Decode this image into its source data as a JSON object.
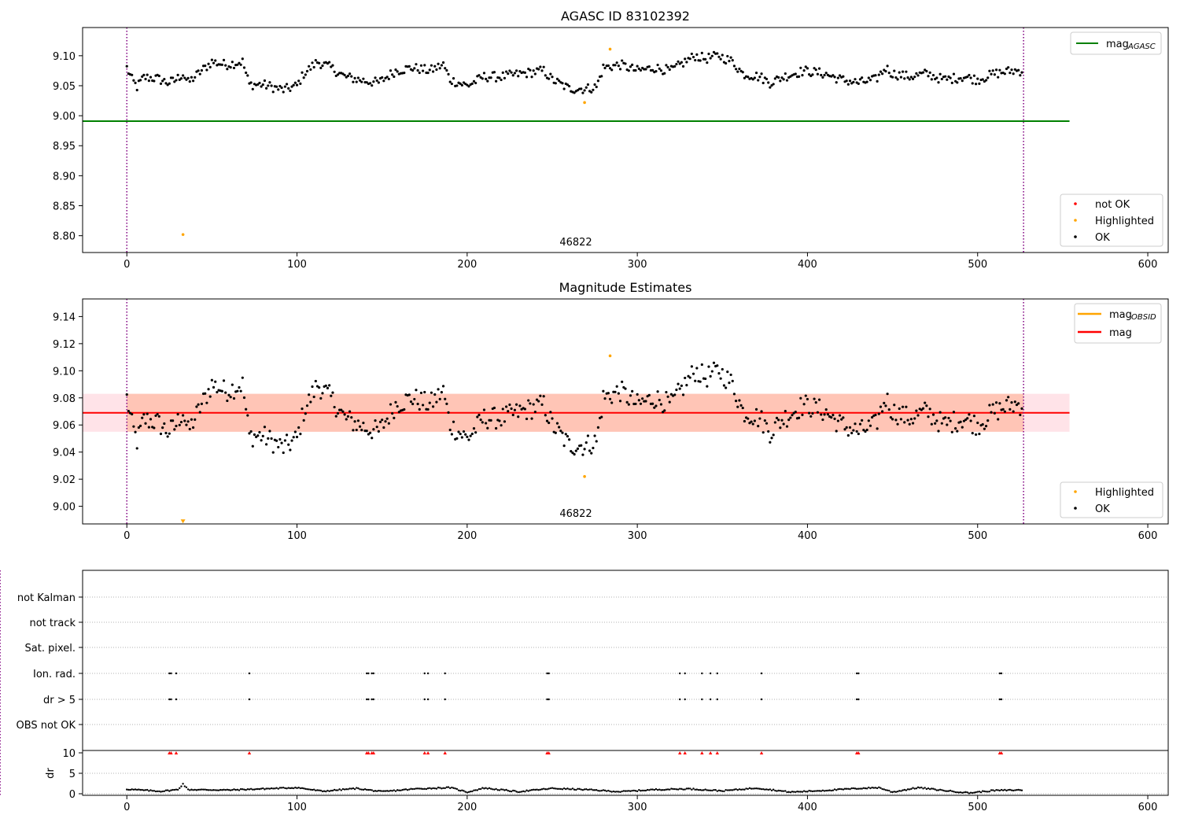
{
  "colors": {
    "ok": "#000000",
    "highlighted": "#ffa500",
    "not_ok": "#ff0000",
    "mag_agasc_line": "#008000",
    "mag_obsid_line": "#ffa500",
    "mag_line": "#ff0000",
    "band_orange": "#ffa07a",
    "band_pink": "#ffc0cb",
    "vline": "#800080"
  },
  "chart_data": [
    {
      "type": "scatter",
      "title": "AGASC ID 83102392",
      "xlabel": "",
      "ylabel": "",
      "xlim": [
        -26,
        612
      ],
      "ylim": [
        8.772,
        9.147
      ],
      "x_ticks": [
        "0",
        "100",
        "200",
        "300",
        "400",
        "500",
        "600"
      ],
      "y_ticks": [
        "8.80",
        "8.85",
        "8.90",
        "8.95",
        "9.00",
        "9.05",
        "9.10"
      ],
      "obsid_label": "46822",
      "obs_start": 0,
      "obs_end": 527,
      "reference_line": {
        "name": "mag_{AGASC}",
        "value": 8.991,
        "x_range": [
          -26,
          554
        ]
      },
      "legend_lines": [
        {
          "label": "mag",
          "sub": "AGASC"
        }
      ],
      "legend_points": [
        {
          "label": "not OK",
          "key": "not_ok"
        },
        {
          "label": "Highlighted",
          "key": "highlighted"
        },
        {
          "label": "OK",
          "key": "ok"
        }
      ],
      "highlighted_points": [
        {
          "x": 33,
          "y": 8.802
        },
        {
          "x": 269,
          "y": 9.022
        },
        {
          "x": 284,
          "y": 9.111
        }
      ],
      "ok_series": {
        "x_start": 0,
        "x_step": 1,
        "count": 527,
        "segments": [
          [
            0,
            9.08
          ],
          [
            3,
            9.06
          ],
          [
            6,
            9.048
          ],
          [
            10,
            9.064
          ],
          [
            18,
            9.062
          ],
          [
            24,
            9.055
          ],
          [
            28,
            9.058
          ],
          [
            33,
            9.07
          ],
          [
            36,
            9.055
          ],
          [
            42,
            9.07
          ],
          [
            50,
            9.09
          ],
          [
            58,
            9.085
          ],
          [
            68,
            9.09
          ],
          [
            72,
            9.052
          ],
          [
            80,
            9.052
          ],
          [
            92,
            9.043
          ],
          [
            100,
            9.05
          ],
          [
            104,
            9.07
          ],
          [
            112,
            9.09
          ],
          [
            120,
            9.08
          ],
          [
            128,
            9.065
          ],
          [
            140,
            9.058
          ],
          [
            148,
            9.055
          ],
          [
            158,
            9.075
          ],
          [
            168,
            9.08
          ],
          [
            178,
            9.075
          ],
          [
            186,
            9.085
          ],
          [
            190,
            9.06
          ],
          [
            200,
            9.05
          ],
          [
            210,
            9.065
          ],
          [
            220,
            9.065
          ],
          [
            232,
            9.07
          ],
          [
            245,
            9.075
          ],
          [
            250,
            9.06
          ],
          [
            260,
            9.045
          ],
          [
            270,
            9.045
          ],
          [
            276,
            9.048
          ],
          [
            280,
            9.08
          ],
          [
            290,
            9.085
          ],
          [
            300,
            9.075
          ],
          [
            310,
            9.08
          ],
          [
            320,
            9.075
          ],
          [
            328,
            9.09
          ],
          [
            334,
            9.1
          ],
          [
            340,
            9.095
          ],
          [
            348,
            9.1
          ],
          [
            356,
            9.09
          ],
          [
            362,
            9.07
          ],
          [
            372,
            9.065
          ],
          [
            378,
            9.055
          ],
          [
            386,
            9.065
          ],
          [
            398,
            9.075
          ],
          [
            410,
            9.07
          ],
          [
            420,
            9.06
          ],
          [
            430,
            9.055
          ],
          [
            440,
            9.06
          ],
          [
            446,
            9.08
          ],
          [
            450,
            9.07
          ],
          [
            460,
            9.065
          ],
          [
            470,
            9.07
          ],
          [
            480,
            9.06
          ],
          [
            492,
            9.065
          ],
          [
            500,
            9.06
          ],
          [
            510,
            9.07
          ],
          [
            520,
            9.075
          ],
          [
            526,
            9.075
          ]
        ]
      }
    },
    {
      "type": "scatter",
      "title": "Magnitude Estimates",
      "xlabel": "",
      "ylabel": "",
      "xlim": [
        -26,
        612
      ],
      "ylim": [
        8.987,
        9.153
      ],
      "x_ticks": [
        "0",
        "100",
        "200",
        "300",
        "400",
        "500",
        "600"
      ],
      "y_ticks": [
        "9.00",
        "9.02",
        "9.04",
        "9.06",
        "9.08",
        "9.10",
        "9.12",
        "9.14"
      ],
      "obsid_label": "46822",
      "obs_start": 0,
      "obs_end": 527,
      "mag_line": {
        "name": "mag",
        "value": 9.069,
        "x_range": [
          -26,
          554
        ]
      },
      "band": {
        "y_range": [
          9.055,
          9.083
        ],
        "x_range": [
          -26,
          554
        ],
        "orange_x_range": [
          0,
          527
        ]
      },
      "legend_lines": [
        {
          "label": "mag",
          "sub": "OBSID",
          "key": "mag_obsid_line"
        },
        {
          "label": "mag",
          "sub": "",
          "key": "mag_line"
        }
      ],
      "legend_points": [
        {
          "label": "Highlighted",
          "key": "highlighted"
        },
        {
          "label": "OK",
          "key": "ok"
        }
      ],
      "highlighted_points": [
        {
          "x": 269,
          "y": 9.022
        },
        {
          "x": 284,
          "y": 9.111
        }
      ],
      "highlighted_markers": [
        {
          "x": 33,
          "y": 8.988,
          "marker": "triangle-down"
        }
      ]
    },
    {
      "type": "scatter",
      "title": "",
      "xlim": [
        -26,
        612
      ],
      "x_ticks": [
        "0",
        "100",
        "200",
        "300",
        "400",
        "500",
        "600"
      ],
      "flag_rows": [
        "OBS not OK",
        "dr > 5",
        "Ion. rad.",
        "Sat. pixel.",
        "not track",
        "not Kalman"
      ],
      "flag_events": [
        25,
        26,
        29,
        72,
        141,
        142,
        144,
        145,
        175,
        177,
        187,
        247,
        248,
        325,
        328,
        338,
        343,
        347,
        373,
        429,
        430,
        513,
        514
      ],
      "dr": {
        "ylabel": "dr",
        "ylim": [
          0,
          10
        ],
        "y_ticks": [
          "0",
          "5",
          "10"
        ],
        "threshold": 10,
        "segments": [
          [
            0,
            1.1
          ],
          [
            20,
            0.6
          ],
          [
            30,
            1.0
          ],
          [
            33,
            2.4
          ],
          [
            36,
            1.0
          ],
          [
            60,
            0.9
          ],
          [
            80,
            1.2
          ],
          [
            100,
            1.5
          ],
          [
            115,
            0.6
          ],
          [
            135,
            1.3
          ],
          [
            150,
            0.5
          ],
          [
            170,
            1.2
          ],
          [
            190,
            1.5
          ],
          [
            200,
            0.4
          ],
          [
            210,
            1.4
          ],
          [
            230,
            0.5
          ],
          [
            250,
            1.3
          ],
          [
            270,
            1.0
          ],
          [
            290,
            0.5
          ],
          [
            310,
            1.0
          ],
          [
            330,
            1.2
          ],
          [
            350,
            0.7
          ],
          [
            370,
            1.4
          ],
          [
            390,
            0.4
          ],
          [
            410,
            0.8
          ],
          [
            430,
            1.3
          ],
          [
            442,
            1.5
          ],
          [
            450,
            0.4
          ],
          [
            465,
            1.5
          ],
          [
            480,
            0.8
          ],
          [
            495,
            0.2
          ],
          [
            510,
            0.8
          ],
          [
            526,
            0.9
          ]
        ]
      }
    }
  ]
}
